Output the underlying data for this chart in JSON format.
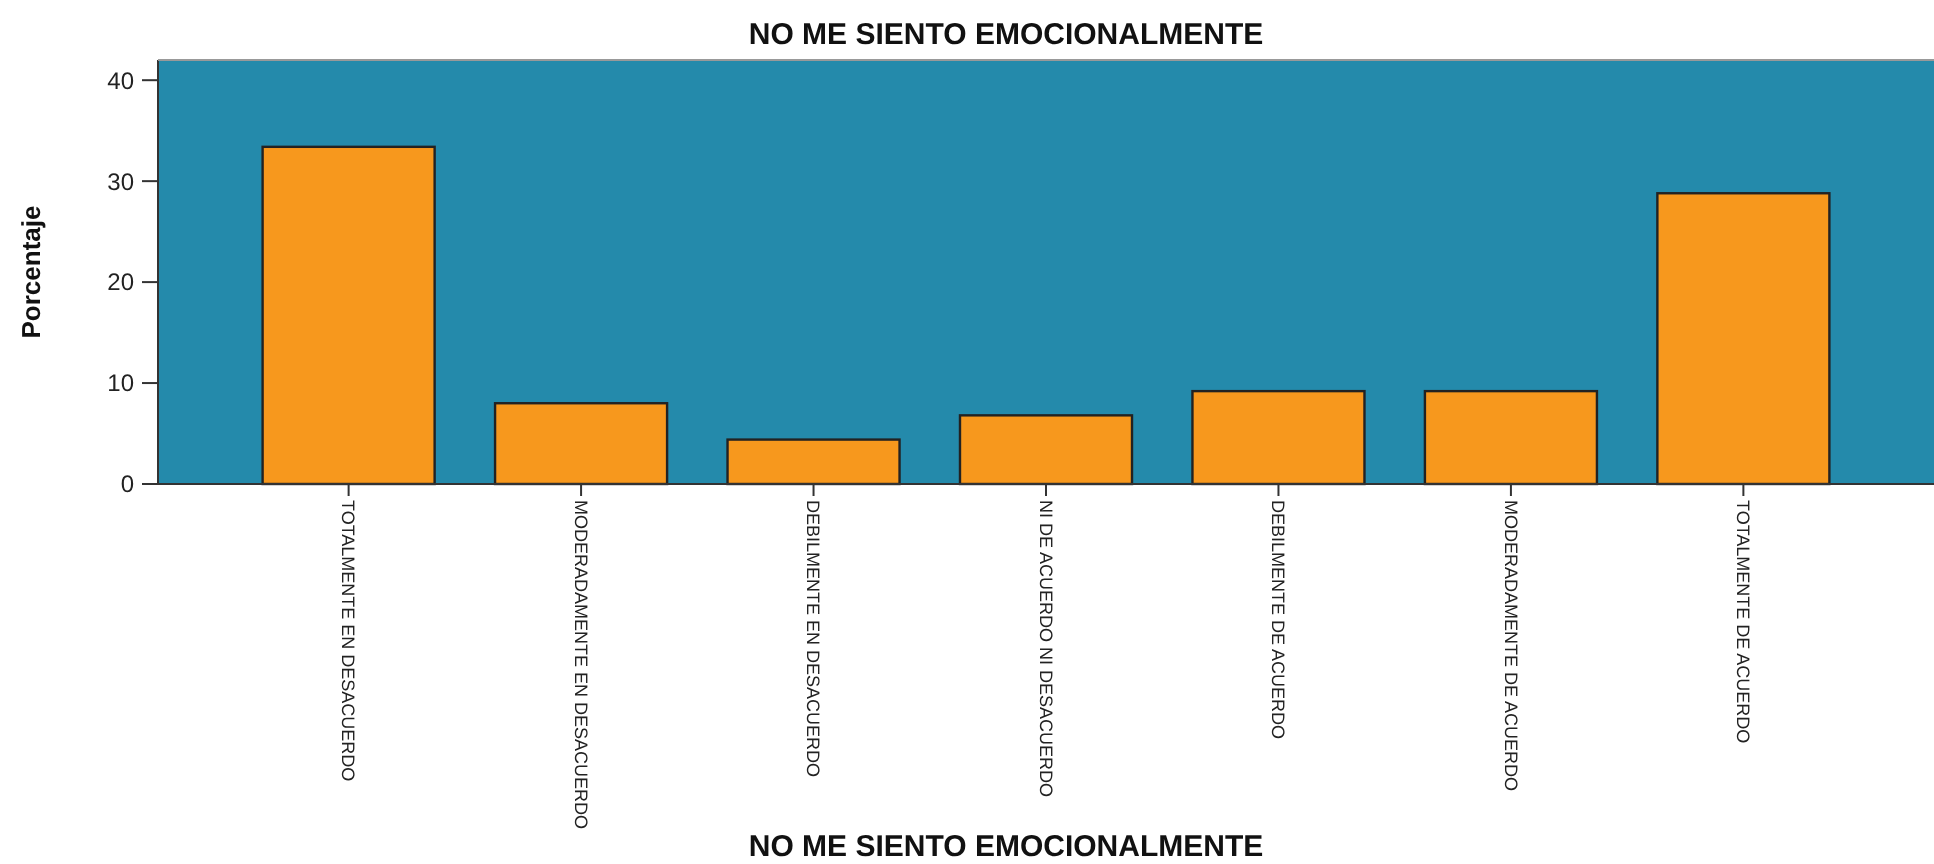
{
  "chart_data": {
    "type": "bar",
    "title": "NO ME SIENTO EMOCIONALMENTE",
    "xlabel": "NO ME SIENTO EMOCIONALMENTE",
    "ylabel": "Porcentaje",
    "categories": [
      "TOTALMENTE EN DESACUERDO",
      "MODERADAMENTE EN DESACUERDO",
      "DEBILMENTE EN DESACUERDO",
      "NI DE ACUERDO NI DESACUERDO",
      "DEBILMENTE DE ACUERDO",
      "MODERADAMENTE DE ACUERDO",
      "TOTALMENTE DE ACUERDO"
    ],
    "values": [
      33.4,
      8.0,
      4.4,
      6.8,
      9.2,
      9.2,
      28.8
    ],
    "color": "#f7981d",
    "ylim": [
      0,
      42
    ],
    "yticks": [
      0,
      10,
      20,
      30,
      40
    ],
    "grid": false
  }
}
